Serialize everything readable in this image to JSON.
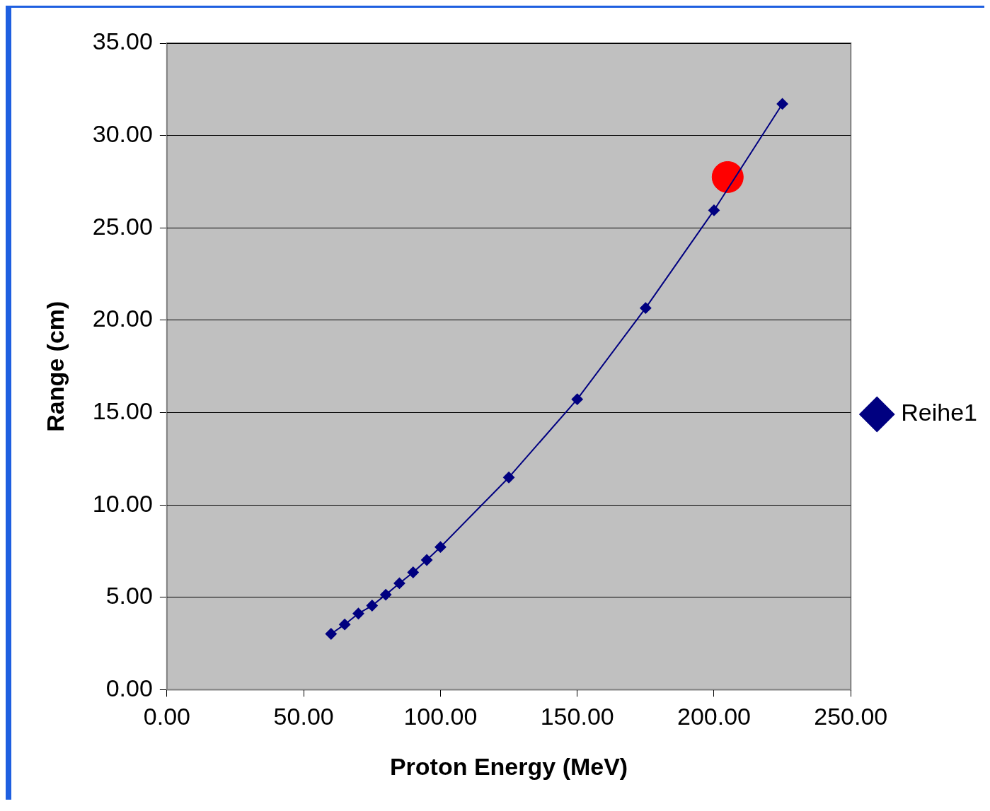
{
  "chart_data": {
    "type": "line",
    "xlabel": "Proton Energy (MeV)",
    "ylabel": "Range (cm)",
    "xlim": [
      0,
      250
    ],
    "xticks": [
      {
        "value": 0,
        "label": "0.00"
      },
      {
        "value": 50,
        "label": "50.00"
      },
      {
        "value": 100,
        "label": "100.00"
      },
      {
        "value": 150,
        "label": "150.00"
      },
      {
        "value": 200,
        "label": "200.00"
      },
      {
        "value": 250,
        "label": "250.00"
      }
    ],
    "ylim": [
      0,
      35
    ],
    "yticks": [
      {
        "value": 0,
        "label": "0.00"
      },
      {
        "value": 5,
        "label": "5.00"
      },
      {
        "value": 10,
        "label": "10.00"
      },
      {
        "value": 15,
        "label": "15.00"
      },
      {
        "value": 20,
        "label": "20.00"
      },
      {
        "value": 25,
        "label": "25.00"
      },
      {
        "value": 30,
        "label": "30.00"
      },
      {
        "value": 35,
        "label": "35.00"
      }
    ],
    "grid": "y",
    "legend": "right",
    "marker": "diamond",
    "line_style": "solid",
    "series": [
      {
        "name": "Reihe1",
        "color": "#000080",
        "x": [
          60,
          65,
          70,
          75,
          80,
          85,
          90,
          95,
          100,
          125,
          150,
          175,
          200,
          225
        ],
        "values": [
          3.02,
          3.53,
          4.12,
          4.55,
          5.14,
          5.76,
          6.35,
          7.02,
          7.72,
          11.49,
          15.72,
          20.66,
          25.95,
          31.71
        ]
      },
      {
        "type": "scatter",
        "color": "#ff0000",
        "marker": "circle",
        "x": [
          205
        ],
        "values": [
          27.75
        ]
      }
    ]
  }
}
